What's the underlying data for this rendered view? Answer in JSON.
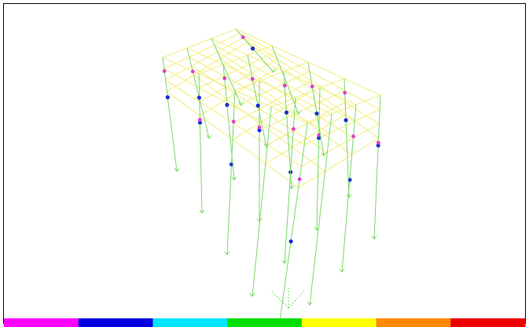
{
  "color_bar": {
    "colors": [
      "#ff00ff",
      "#0000e0",
      "#00e5ff",
      "#00dd00",
      "#ffff00",
      "#ff8800",
      "#ee0000"
    ]
  }
}
